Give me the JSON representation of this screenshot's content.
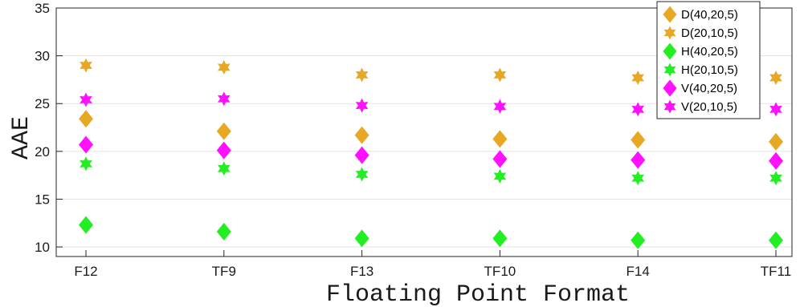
{
  "chart_data": {
    "type": "scatter",
    "categories": [
      "F12",
      "TF9",
      "F13",
      "TF10",
      "F14",
      "TF11"
    ],
    "xlabel": "Floating Point Format",
    "ylabel": "AAE",
    "ylim": [
      9,
      35
    ],
    "yticks": [
      10,
      15,
      20,
      25,
      30,
      35
    ],
    "grid": "horizontal",
    "legend_position": "top-right",
    "series": [
      {
        "name": "D(40,20,5)",
        "marker": "diamond",
        "color": "#E8A823",
        "values": [
          23.4,
          22.1,
          21.7,
          21.3,
          21.2,
          21.0
        ]
      },
      {
        "name": "D(20,10,5)",
        "marker": "hexagram",
        "color": "#E8A823",
        "values": [
          29.0,
          28.8,
          28.0,
          28.0,
          27.7,
          27.7
        ]
      },
      {
        "name": "H(40,20,5)",
        "marker": "diamond",
        "color": "#22EE22",
        "values": [
          12.3,
          11.6,
          10.9,
          10.9,
          10.7,
          10.7
        ]
      },
      {
        "name": "H(20,10,5)",
        "marker": "hexagram",
        "color": "#22EE22",
        "values": [
          18.7,
          18.2,
          17.6,
          17.4,
          17.2,
          17.2
        ]
      },
      {
        "name": "V(40,20,5)",
        "marker": "diamond",
        "color": "#FF11FF",
        "values": [
          20.7,
          20.1,
          19.6,
          19.2,
          19.1,
          19.0
        ]
      },
      {
        "name": "V(20,10,5)",
        "marker": "hexagram",
        "color": "#FF11FF",
        "values": [
          25.4,
          25.5,
          24.8,
          24.7,
          24.4,
          24.4
        ]
      }
    ]
  }
}
